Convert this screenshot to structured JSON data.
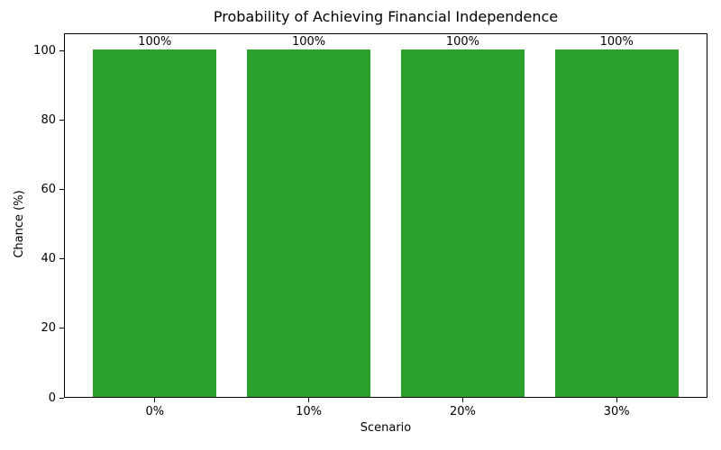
{
  "chart_data": {
    "type": "bar",
    "title": "Probability of Achieving Financial Independence",
    "xlabel": "Scenario",
    "ylabel": "Chance (%)",
    "categories": [
      "0%",
      "10%",
      "20%",
      "30%"
    ],
    "values": [
      100,
      100,
      100,
      100
    ],
    "bar_labels": [
      "100%",
      "100%",
      "100%",
      "100%"
    ],
    "yticks": [
      0,
      20,
      40,
      60,
      80,
      100
    ],
    "ylim": [
      0,
      105
    ],
    "xlim": [
      -0.59,
      3.59
    ],
    "bar_width": 0.8,
    "bar_color": "#2ca02c",
    "text_color": "#000000",
    "background_color": "#ffffff",
    "grid": false,
    "legend": "none"
  }
}
